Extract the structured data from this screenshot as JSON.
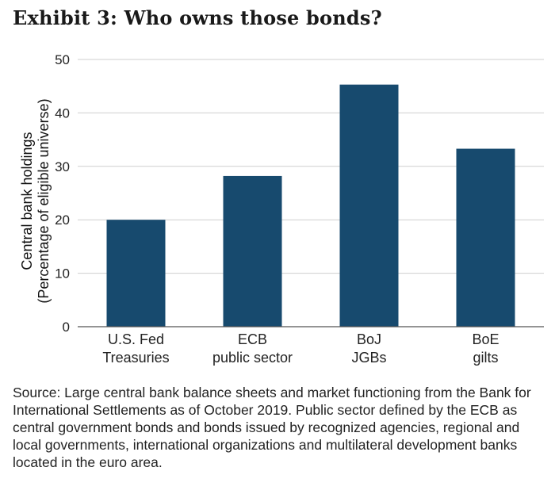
{
  "title": "Exhibit 3: Who owns those bonds?",
  "source_note": "Source: Large central bank balance sheets and market functioning from the Bank for International Settlements as of October 2019. Public sector defined by the ECB as central government bonds and bonds issued by recognized agencies, regional and local governments, international organizations and multilateral development banks located in the euro area.",
  "colors": {
    "bar": "#174a6e",
    "grid": "#cfcfcf",
    "axis": "#555555"
  },
  "chart_data": {
    "type": "bar",
    "title": "Exhibit 3: Who owns those bonds?",
    "xlabel": "",
    "ylabel": [
      "Central bank holdings",
      "(Percentage of eligible universe)"
    ],
    "categories": [
      [
        "U.S. Fed",
        "Treasuries"
      ],
      [
        "ECB",
        "public sector"
      ],
      [
        "BoJ",
        "JGBs"
      ],
      [
        "BoE",
        "gilts"
      ]
    ],
    "values": [
      20,
      28.2,
      45.3,
      33.3
    ],
    "ylim": [
      0,
      50
    ],
    "yticks": [
      0,
      10,
      20,
      30,
      40,
      50
    ],
    "grid": true,
    "legend": "none"
  }
}
